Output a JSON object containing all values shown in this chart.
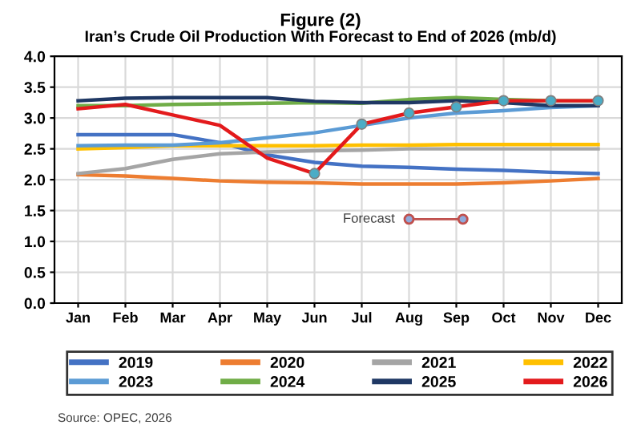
{
  "chart_data": {
    "type": "line",
    "title": "Figure (2)",
    "subtitle": "Iran’s Crude Oil Production With Forecast to End of 2026 (mb/d)",
    "categories": [
      "Jan",
      "Feb",
      "Mar",
      "Apr",
      "May",
      "Jun",
      "Jul",
      "Aug",
      "Sep",
      "Oct",
      "Nov",
      "Dec"
    ],
    "series": [
      {
        "name": "2019",
        "color": "#4472c4",
        "values": [
          2.73,
          2.73,
          2.73,
          2.6,
          2.4,
          2.28,
          2.22,
          2.2,
          2.17,
          2.15,
          2.12,
          2.1
        ]
      },
      {
        "name": "2020",
        "color": "#ed7d31",
        "values": [
          2.08,
          2.06,
          2.02,
          1.98,
          1.96,
          1.95,
          1.93,
          1.93,
          1.93,
          1.95,
          1.98,
          2.02
        ]
      },
      {
        "name": "2021",
        "color": "#a5a5a5",
        "values": [
          2.1,
          2.18,
          2.33,
          2.42,
          2.45,
          2.47,
          2.48,
          2.5,
          2.5,
          2.5,
          2.5,
          2.5
        ]
      },
      {
        "name": "2022",
        "color": "#ffc000",
        "values": [
          2.5,
          2.52,
          2.55,
          2.55,
          2.55,
          2.55,
          2.56,
          2.56,
          2.57,
          2.57,
          2.57,
          2.57
        ]
      },
      {
        "name": "2023",
        "color": "#5b9bd5",
        "values": [
          2.55,
          2.56,
          2.56,
          2.6,
          2.68,
          2.76,
          2.88,
          3.0,
          3.08,
          3.12,
          3.17,
          3.2
        ]
      },
      {
        "name": "2024",
        "color": "#70ad47",
        "values": [
          3.2,
          3.2,
          3.22,
          3.23,
          3.24,
          3.25,
          3.24,
          3.3,
          3.33,
          3.3,
          3.28,
          3.28
        ]
      },
      {
        "name": "2025",
        "color": "#1f3864",
        "values": [
          3.28,
          3.32,
          3.33,
          3.33,
          3.33,
          3.27,
          3.25,
          3.25,
          3.28,
          3.25,
          3.2,
          3.2
        ]
      },
      {
        "name": "2026",
        "color": "#e31a1c",
        "values": [
          3.15,
          3.22,
          3.05,
          2.88,
          2.35,
          2.1,
          null,
          null,
          null,
          null,
          null,
          null
        ]
      },
      {
        "color": "#e31a1c",
        "marker": "circle",
        "values": [
          null,
          null,
          null,
          null,
          null,
          2.1,
          2.9,
          3.08,
          3.18,
          3.28,
          3.28,
          3.28
        ]
      }
    ],
    "ylim": [
      0,
      4
    ],
    "yticks": [
      {
        "value": 0,
        "label": "0.0"
      },
      {
        "value": 0.5,
        "label": "0.5"
      },
      {
        "value": 1,
        "label": "1.0"
      },
      {
        "value": 1.5,
        "label": "1.5"
      },
      {
        "value": 2,
        "label": "2.0"
      },
      {
        "value": 2.5,
        "label": "2.5"
      },
      {
        "value": 3,
        "label": "3.0"
      },
      {
        "value": 3.5,
        "label": "3.5"
      },
      {
        "value": 4,
        "label": "4.0"
      }
    ],
    "grid": true,
    "legend": "bottom",
    "marker": "none",
    "line_style": "solid",
    "annotations": [
      "Forecast",
      "Source: OPEC, 2026"
    ]
  }
}
